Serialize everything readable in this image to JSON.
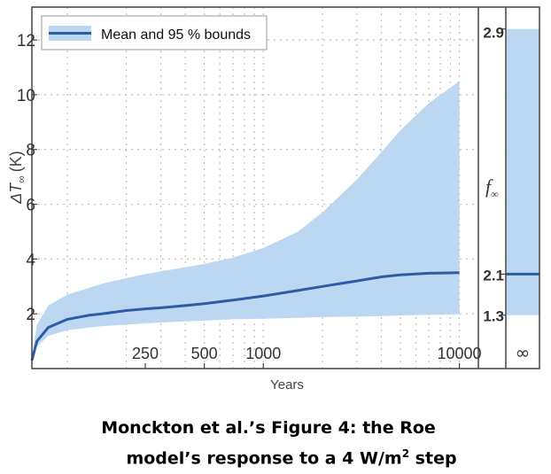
{
  "chart_data": {
    "type": "area",
    "ylabel_prefix": "ΔT",
    "ylabel_sub": "∞",
    "ylabel_unit": "(K)",
    "xlabel": "Years",
    "x_scale": "log",
    "xlim": [
      66,
      12500
    ],
    "ylim": [
      0,
      13.2
    ],
    "grid": true,
    "legend": {
      "position": "top-left",
      "entry": "Mean and 95 % bounds"
    },
    "x_ticks": [
      250,
      500,
      1000,
      10000
    ],
    "y_ticks": [
      2,
      4,
      6,
      8,
      10,
      12
    ],
    "series": [
      {
        "x": [
          66,
          70,
          80,
          100,
          130,
          150,
          200,
          250,
          300,
          400,
          500,
          700,
          1000,
          1500,
          2000,
          3000,
          4000,
          5000,
          7000,
          10000
        ],
        "mean": [
          0.3,
          1.0,
          1.5,
          1.8,
          1.95,
          2.0,
          2.12,
          2.18,
          2.22,
          2.3,
          2.37,
          2.5,
          2.65,
          2.85,
          3.0,
          3.2,
          3.35,
          3.42,
          3.48,
          3.5
        ],
        "lower": [
          0.3,
          0.8,
          1.2,
          1.4,
          1.5,
          1.55,
          1.6,
          1.65,
          1.68,
          1.72,
          1.75,
          1.8,
          1.82,
          1.85,
          1.88,
          1.9,
          1.92,
          1.94,
          1.96,
          1.98
        ],
        "upper": [
          0.4,
          1.6,
          2.3,
          2.7,
          2.95,
          3.1,
          3.3,
          3.45,
          3.55,
          3.7,
          3.82,
          4.05,
          4.4,
          5.0,
          5.7,
          6.9,
          7.9,
          8.7,
          9.7,
          10.5
        ]
      }
    ],
    "f_inf_panel": {
      "label": "f",
      "label_sub": "∞",
      "ticks": [
        {
          "label": "2.9",
          "y": 12.4
        },
        {
          "label": "2.1",
          "y": 3.45
        },
        {
          "label": "1.3",
          "y": 1.95
        }
      ]
    },
    "infinity_panel": {
      "tick_label": "∞",
      "mean": 3.45,
      "lower": 1.95,
      "upper": 12.4
    },
    "colors": {
      "band": "#bcd7f1",
      "line": "#2f5ba6",
      "grid": "#bfbfbf",
      "axis": "#444444"
    }
  },
  "caption": {
    "line1": "Monckton et al.’s Figure 4: the Roe",
    "line2_prefix": "model’s response to a 4 W/m",
    "line2_sup": "2",
    "line2_suffix": " step"
  }
}
